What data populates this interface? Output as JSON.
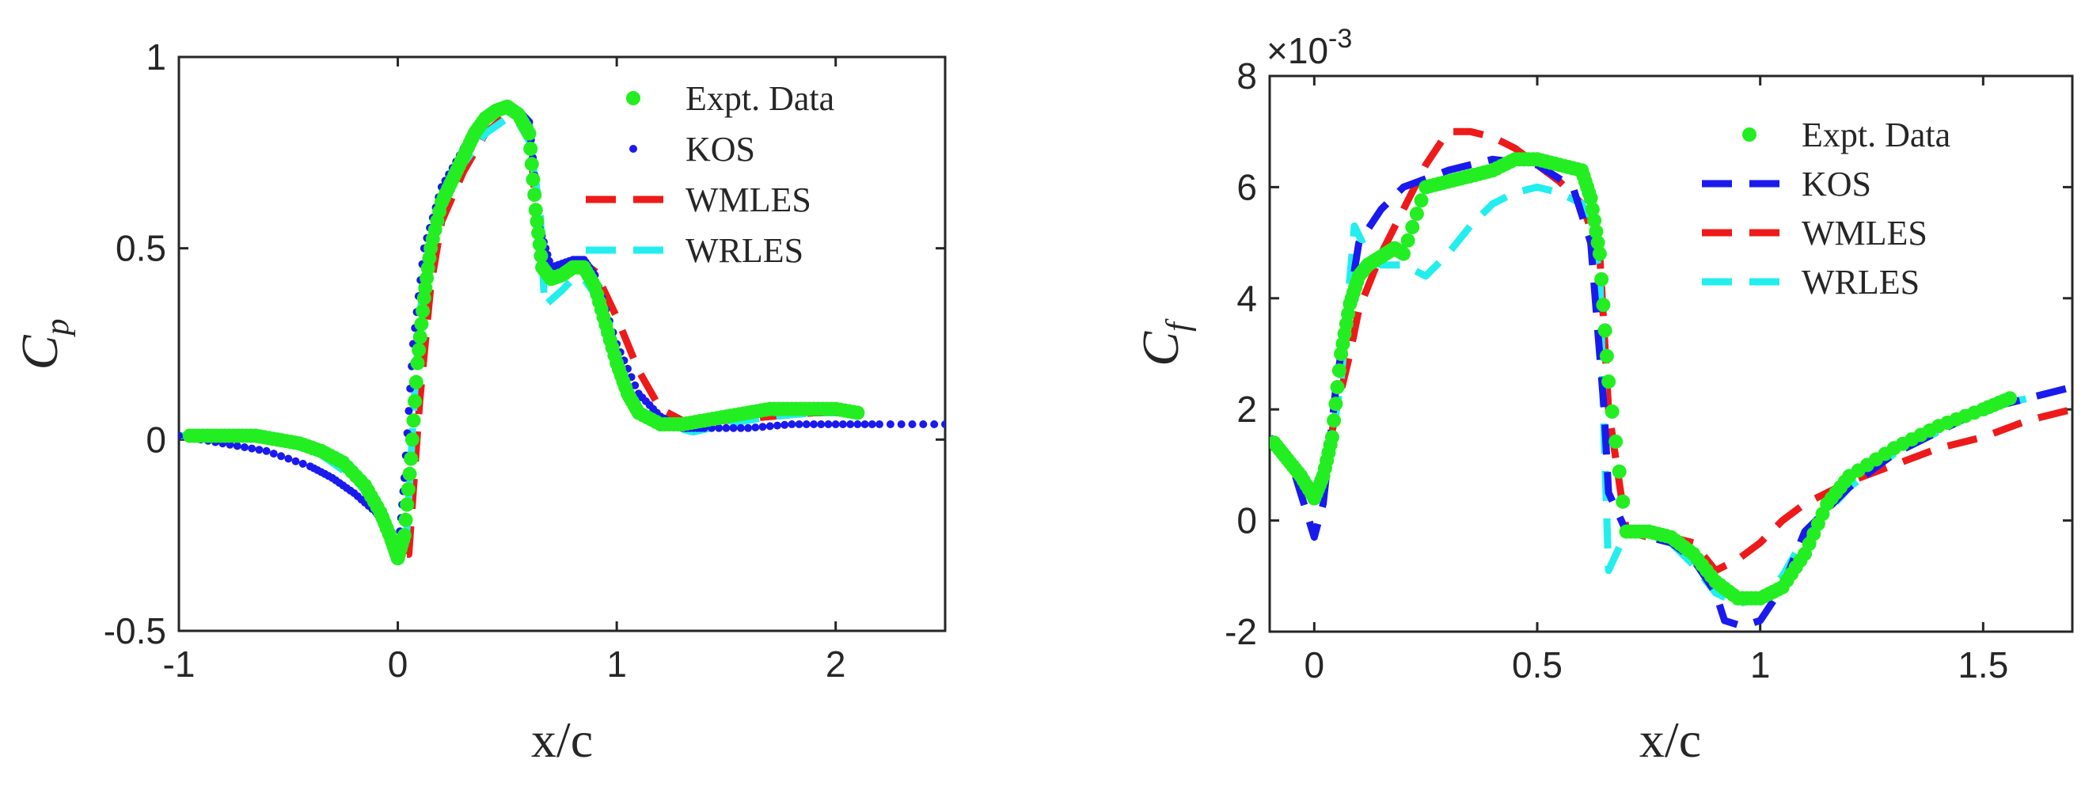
{
  "colors": {
    "expt": "#22ee22",
    "kos": "#1a1aee",
    "wmles": "#ee1a1a",
    "wrles": "#22eeee",
    "axis": "#262626"
  },
  "chart_data": [
    {
      "type": "line",
      "title": "",
      "xlabel": "x/c",
      "ylabel": "C",
      "ylabel_sub": "p",
      "xlim": [
        -1,
        2.5
      ],
      "ylim": [
        -0.5,
        1
      ],
      "xticks": [
        -1,
        0,
        1,
        2
      ],
      "yticks": [
        -0.5,
        0,
        0.5,
        1
      ],
      "xtick_labels": [
        "-1",
        "0",
        "1",
        "2"
      ],
      "ytick_labels": [
        "-0.5",
        "0",
        "0.5",
        "1"
      ],
      "legend_position": "top-right",
      "series": [
        {
          "name": "Expt. Data",
          "style": "markers",
          "x": [
            -0.95,
            -0.85,
            -0.75,
            -0.65,
            -0.55,
            -0.45,
            -0.35,
            -0.25,
            -0.15,
            -0.08,
            -0.03,
            0.0,
            0.03,
            0.06,
            0.09,
            0.12,
            0.15,
            0.2,
            0.25,
            0.3,
            0.35,
            0.4,
            0.45,
            0.5,
            0.55,
            0.6,
            0.63,
            0.66,
            0.7,
            0.75,
            0.8,
            0.85,
            0.9,
            0.95,
            1.0,
            1.05,
            1.1,
            1.2,
            1.3,
            1.4,
            1.5,
            1.6,
            1.7,
            1.8,
            1.9,
            2.0,
            2.1
          ],
          "y": [
            0.01,
            0.01,
            0.01,
            0.01,
            0.0,
            -0.01,
            -0.03,
            -0.06,
            -0.12,
            -0.19,
            -0.26,
            -0.31,
            -0.25,
            -0.05,
            0.2,
            0.37,
            0.5,
            0.62,
            0.68,
            0.74,
            0.8,
            0.84,
            0.86,
            0.87,
            0.85,
            0.8,
            0.6,
            0.45,
            0.42,
            0.43,
            0.45,
            0.45,
            0.4,
            0.3,
            0.2,
            0.12,
            0.07,
            0.04,
            0.04,
            0.05,
            0.06,
            0.07,
            0.08,
            0.08,
            0.08,
            0.08,
            0.07
          ]
        },
        {
          "name": "KOS",
          "style": "dots",
          "x": [
            -1.0,
            -0.8,
            -0.6,
            -0.4,
            -0.3,
            -0.2,
            -0.1,
            -0.05,
            0.0,
            0.03,
            0.07,
            0.12,
            0.2,
            0.3,
            0.4,
            0.45,
            0.5,
            0.55,
            0.6,
            0.65,
            0.7,
            0.8,
            0.85,
            0.9,
            1.0,
            1.1,
            1.2,
            1.3,
            1.4,
            1.6,
            1.8,
            2.0,
            2.2,
            2.5
          ],
          "y": [
            0.01,
            -0.01,
            -0.03,
            -0.07,
            -0.1,
            -0.14,
            -0.19,
            -0.23,
            -0.31,
            -0.1,
            0.25,
            0.5,
            0.66,
            0.76,
            0.83,
            0.86,
            0.87,
            0.86,
            0.83,
            0.55,
            0.45,
            0.47,
            0.47,
            0.43,
            0.25,
            0.12,
            0.06,
            0.03,
            0.03,
            0.03,
            0.04,
            0.04,
            0.04,
            0.04
          ]
        },
        {
          "name": "WMLES",
          "style": "dashed",
          "x": [
            -1.0,
            -0.8,
            -0.6,
            -0.4,
            -0.2,
            -0.1,
            0.0,
            0.05,
            0.1,
            0.15,
            0.2,
            0.3,
            0.4,
            0.5,
            0.55,
            0.6,
            0.63,
            0.68,
            0.75,
            0.8,
            0.85,
            0.9,
            1.0,
            1.1,
            1.2,
            1.3,
            1.5,
            1.7,
            1.9,
            2.05
          ],
          "y": [
            0.01,
            0.01,
            0.0,
            -0.02,
            -0.09,
            -0.16,
            -0.3,
            -0.3,
            0.1,
            0.4,
            0.57,
            0.7,
            0.8,
            0.85,
            0.85,
            0.82,
            0.6,
            0.43,
            0.44,
            0.46,
            0.46,
            0.44,
            0.32,
            0.18,
            0.08,
            0.05,
            0.05,
            0.06,
            0.07,
            0.07
          ]
        },
        {
          "name": "WRLES",
          "style": "dashed",
          "x": [
            -1.0,
            -0.8,
            -0.6,
            -0.4,
            -0.2,
            -0.1,
            0.0,
            0.04,
            0.08,
            0.12,
            0.2,
            0.3,
            0.4,
            0.5,
            0.55,
            0.6,
            0.65,
            0.67,
            0.75,
            0.8,
            0.85,
            0.9,
            1.0,
            1.1,
            1.2,
            1.35,
            1.5,
            1.7,
            1.9,
            2.0
          ],
          "y": [
            0.01,
            0.01,
            0.0,
            -0.02,
            -0.1,
            -0.17,
            -0.31,
            -0.25,
            0.15,
            0.45,
            0.6,
            0.72,
            0.8,
            0.84,
            0.83,
            0.78,
            0.6,
            0.35,
            0.39,
            0.42,
            0.42,
            0.38,
            0.2,
            0.08,
            0.04,
            0.02,
            0.04,
            0.06,
            0.07,
            0.07
          ]
        }
      ]
    },
    {
      "type": "line",
      "title": "",
      "xlabel": "x/c",
      "ylabel": "C",
      "ylabel_sub": "f",
      "exponent_label": "×10",
      "exponent_power": "-3",
      "xlim": [
        -0.1,
        1.7
      ],
      "ylim": [
        -2,
        8
      ],
      "xticks": [
        0,
        0.5,
        1,
        1.5
      ],
      "yticks": [
        -2,
        0,
        2,
        4,
        6,
        8
      ],
      "xtick_labels": [
        "0",
        "0.5",
        "1",
        "1.5"
      ],
      "ytick_labels": [
        "-2",
        "0",
        "2",
        "4",
        "6",
        "8"
      ],
      "legend_position": "top-right",
      "series": [
        {
          "name": "Expt. Data",
          "style": "markers",
          "x": [
            -0.09,
            -0.06,
            -0.03,
            0.0,
            0.02,
            0.04,
            0.06,
            0.08,
            0.1,
            0.12,
            0.14,
            0.16,
            0.18,
            0.2,
            0.25,
            0.3,
            0.35,
            0.4,
            0.45,
            0.5,
            0.55,
            0.6,
            0.62,
            0.64,
            0.66,
            0.7,
            0.75,
            0.8,
            0.85,
            0.9,
            0.95,
            1.0,
            1.05,
            1.1,
            1.15,
            1.2,
            1.3,
            1.4,
            1.5,
            1.56
          ],
          "y": [
            1.4,
            1.1,
            0.8,
            0.4,
            0.8,
            1.5,
            3.0,
            3.9,
            4.4,
            4.6,
            4.7,
            4.8,
            4.9,
            4.8,
            6.0,
            6.1,
            6.2,
            6.3,
            6.5,
            6.5,
            6.4,
            6.3,
            5.8,
            4.8,
            2.5,
            -0.2,
            -0.2,
            -0.3,
            -0.6,
            -1.1,
            -1.4,
            -1.4,
            -1.2,
            -0.6,
            0.3,
            0.8,
            1.3,
            1.7,
            2.0,
            2.2
          ]
        },
        {
          "name": "KOS",
          "style": "dashed",
          "x": [
            -0.1,
            -0.05,
            0.0,
            0.02,
            0.05,
            0.1,
            0.15,
            0.2,
            0.3,
            0.4,
            0.5,
            0.58,
            0.62,
            0.65,
            0.66,
            0.7,
            0.75,
            0.8,
            0.85,
            0.9,
            0.92,
            0.96,
            1.0,
            1.05,
            1.1,
            1.2,
            1.3,
            1.4,
            1.5,
            1.6,
            1.7
          ],
          "y": [
            1.5,
            1.0,
            -0.3,
            0.3,
            2.5,
            5.0,
            5.6,
            6.0,
            6.3,
            6.5,
            6.4,
            6.0,
            5.0,
            2.0,
            0.5,
            -0.2,
            -0.3,
            -0.4,
            -0.7,
            -1.3,
            -1.8,
            -1.9,
            -1.8,
            -1.2,
            -0.2,
            0.6,
            1.2,
            1.6,
            2.0,
            2.2,
            2.4
          ]
        },
        {
          "name": "WMLES",
          "style": "dashed",
          "x": [
            -0.1,
            -0.05,
            0.0,
            0.02,
            0.05,
            0.08,
            0.1,
            0.15,
            0.2,
            0.25,
            0.3,
            0.35,
            0.4,
            0.45,
            0.5,
            0.55,
            0.6,
            0.64,
            0.66,
            0.7,
            0.75,
            0.8,
            0.85,
            0.9,
            0.95,
            1.0,
            1.05,
            1.1,
            1.2,
            1.3,
            1.4,
            1.5,
            1.6,
            1.7
          ],
          "y": [
            1.5,
            1.0,
            0.4,
            0.8,
            2.0,
            3.0,
            3.8,
            4.8,
            5.6,
            6.4,
            7.0,
            7.0,
            6.9,
            6.7,
            6.4,
            6.1,
            5.7,
            4.8,
            2.0,
            -0.2,
            -0.3,
            -0.3,
            -0.4,
            -0.9,
            -0.7,
            -0.4,
            0.0,
            0.3,
            0.7,
            1.0,
            1.3,
            1.5,
            1.8,
            2.0
          ]
        },
        {
          "name": "WRLES",
          "style": "dashed",
          "x": [
            -0.1,
            -0.05,
            0.0,
            0.03,
            0.06,
            0.09,
            0.12,
            0.15,
            0.2,
            0.25,
            0.3,
            0.35,
            0.4,
            0.45,
            0.5,
            0.55,
            0.6,
            0.64,
            0.65,
            0.66,
            0.7,
            0.75,
            0.8,
            0.85,
            0.9,
            0.95,
            1.0,
            1.05,
            1.1,
            1.2,
            1.3,
            1.4,
            1.5,
            1.6
          ],
          "y": [
            1.5,
            1.1,
            0.5,
            1.0,
            2.5,
            5.3,
            4.8,
            4.6,
            4.6,
            4.4,
            4.8,
            5.3,
            5.7,
            5.9,
            6.0,
            5.9,
            5.7,
            4.5,
            1.5,
            -0.9,
            -0.2,
            -0.2,
            -0.4,
            -0.8,
            -1.3,
            -1.5,
            -1.4,
            -1.0,
            -0.3,
            0.6,
            1.2,
            1.6,
            2.0,
            2.2
          ]
        }
      ]
    }
  ]
}
